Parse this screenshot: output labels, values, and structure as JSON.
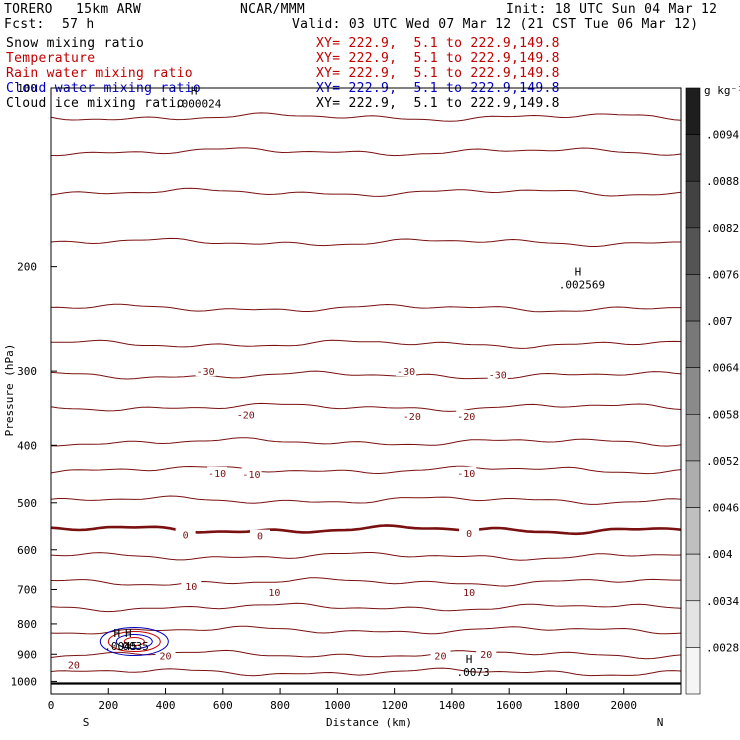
{
  "header": {
    "model": "TORERO",
    "resolution": "15km ARW",
    "center": "NCAR/MMM",
    "init": "Init: 18 UTC Sun 04 Mar 12",
    "fcst_label": "Fcst:",
    "fcst_value": "57 h",
    "valid": "Valid: 03 UTC Wed 07 Mar 12 (21 CST Tue 06 Mar 12)"
  },
  "legend": [
    {
      "label": "Snow mixing ratio",
      "xy": "XY= 222.9,  5.1 to 222.9,149.8",
      "color": "#000000"
    },
    {
      "label": "Temperature",
      "xy": "XY= 222.9,  5.1 to 222.9,149.8",
      "color": "#c00000"
    },
    {
      "label": "Rain water mixing ratio",
      "xy": "XY= 222.9,  5.1 to 222.9,149.8",
      "color": "#c00000"
    },
    {
      "label": "Cloud water mixing ratio",
      "xy": "XY= 222.9,  5.1 to 222.9,149.8",
      "color": "#0000c0"
    },
    {
      "label": "Cloud ice mixing ratio",
      "xy": "XY= 222.9,  5.1 to 222.9,149.8",
      "color": "#000000"
    }
  ],
  "colorbar": {
    "unit": "g kg⁻¹",
    "labels": [
      ".0094",
      ".0088",
      ".0082",
      ".0076",
      ".007",
      ".0064",
      ".0058",
      ".0052",
      ".0046",
      ".004",
      ".0034",
      ".0028"
    ]
  },
  "chart_data": {
    "type": "contour",
    "xlabel": "Distance (km)",
    "ylabel": "Pressure (hPa)",
    "xlim": [
      0,
      2200
    ],
    "ylim": [
      1050,
      100
    ],
    "y_log": true,
    "x_ticks": [
      0,
      200,
      400,
      600,
      800,
      1000,
      1200,
      1400,
      1600,
      1800,
      2000
    ],
    "y_ticks": [
      100,
      200,
      300,
      400,
      500,
      600,
      700,
      800,
      900,
      1000
    ],
    "x_end_labels": {
      "left": "S",
      "right": "N"
    },
    "temperature_contours": {
      "interval_c": 5,
      "levels": [
        {
          "t": -55,
          "p": 112
        },
        {
          "t": -50,
          "p": 128
        },
        {
          "t": -45,
          "p": 150
        },
        {
          "t": -40,
          "p": 182
        },
        {
          "t": -35,
          "p": 235
        },
        {
          "t": -30,
          "p": 270
        },
        {
          "t": -25,
          "p": 305
        },
        {
          "t": -20,
          "p": 345
        },
        {
          "t": -15,
          "p": 395
        },
        {
          "t": -10,
          "p": 440
        },
        {
          "t": -5,
          "p": 495
        },
        {
          "t": 0,
          "p": 555
        },
        {
          "t": 5,
          "p": 615
        },
        {
          "t": 10,
          "p": 680
        },
        {
          "t": 15,
          "p": 750
        },
        {
          "t": 20,
          "p": 820
        },
        {
          "t": 25,
          "p": 900
        },
        {
          "t": 30,
          "p": 965
        }
      ],
      "labels": [
        {
          "text": "-30",
          "x": 540,
          "p": 300
        },
        {
          "text": "-30",
          "x": 1240,
          "p": 300
        },
        {
          "text": "-30",
          "x": 1560,
          "p": 304
        },
        {
          "text": "-20",
          "x": 680,
          "p": 355
        },
        {
          "text": "-20",
          "x": 1260,
          "p": 357
        },
        {
          "text": "-20",
          "x": 1450,
          "p": 357
        },
        {
          "text": "-10",
          "x": 580,
          "p": 445
        },
        {
          "text": "-10",
          "x": 700,
          "p": 447
        },
        {
          "text": "-10",
          "x": 1450,
          "p": 445
        },
        {
          "text": "0",
          "x": 470,
          "p": 565
        },
        {
          "text": "0",
          "x": 730,
          "p": 568
        },
        {
          "text": "0",
          "x": 1460,
          "p": 562
        },
        {
          "text": "10",
          "x": 490,
          "p": 690
        },
        {
          "text": "10",
          "x": 780,
          "p": 707
        },
        {
          "text": "10",
          "x": 1460,
          "p": 707
        },
        {
          "text": "20",
          "x": 400,
          "p": 905
        },
        {
          "text": "20",
          "x": 1360,
          "p": 904
        },
        {
          "text": "20",
          "x": 1520,
          "p": 899
        },
        {
          "text": "20",
          "x": 80,
          "p": 937
        }
      ]
    },
    "extrema": [
      {
        "label": "H",
        "value": ".000024",
        "x": 500,
        "p": 105,
        "color": "#000000"
      },
      {
        "label": "H",
        "value": ".002569",
        "x": 1840,
        "p": 212,
        "color": "#000000"
      },
      {
        "label": "H",
        "value": ".0073",
        "x": 1460,
        "p": 953,
        "color": "#0000c0"
      },
      {
        "label": "H",
        "value": ".0045",
        "x": 230,
        "p": 862,
        "color": "#c00000"
      },
      {
        "label": "H",
        "value": ".0035",
        "x": 270,
        "p": 862,
        "color": "#0000c0"
      }
    ],
    "ground_pressure_hpa": 1008
  }
}
